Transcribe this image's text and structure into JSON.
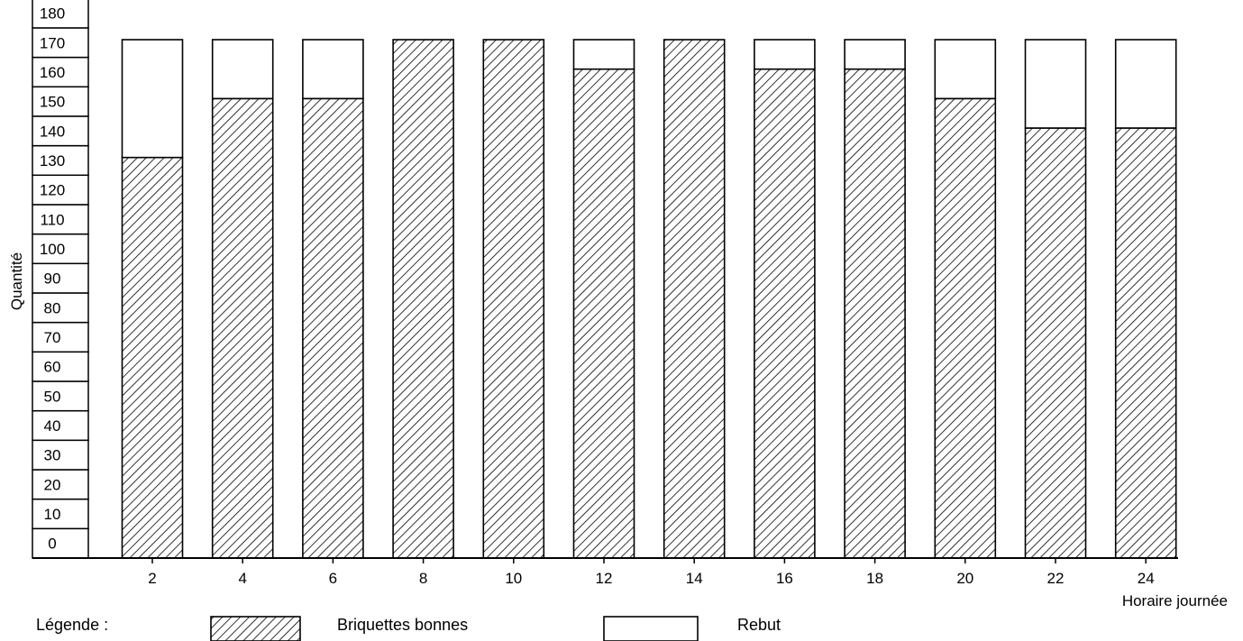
{
  "chart_data": {
    "type": "bar",
    "stacked": true,
    "categories": [
      "2",
      "4",
      "6",
      "8",
      "10",
      "12",
      "14",
      "16",
      "18",
      "20",
      "22",
      "24"
    ],
    "series": [
      {
        "name": "Briquettes bonnes",
        "values": [
          136,
          156,
          156,
          176,
          176,
          166,
          176,
          166,
          166,
          156,
          146,
          146
        ]
      },
      {
        "name": "Rebut",
        "values": [
          40,
          20,
          20,
          0,
          0,
          10,
          0,
          10,
          10,
          20,
          30,
          30
        ]
      }
    ],
    "xlabel": "Horaire journée",
    "ylabel": "Quantité",
    "yticks": [
      0,
      10,
      20,
      30,
      40,
      50,
      60,
      70,
      80,
      90,
      100,
      110,
      120,
      130,
      140,
      150,
      160,
      170,
      180
    ],
    "ylim": [
      0,
      180
    ],
    "grid": false,
    "legend": {
      "title": "Légende :",
      "placement": "bottom",
      "items": [
        {
          "label": "Briquettes bonnes",
          "fill": "hatched"
        },
        {
          "label": "Rebut",
          "fill": "white"
        }
      ]
    }
  }
}
